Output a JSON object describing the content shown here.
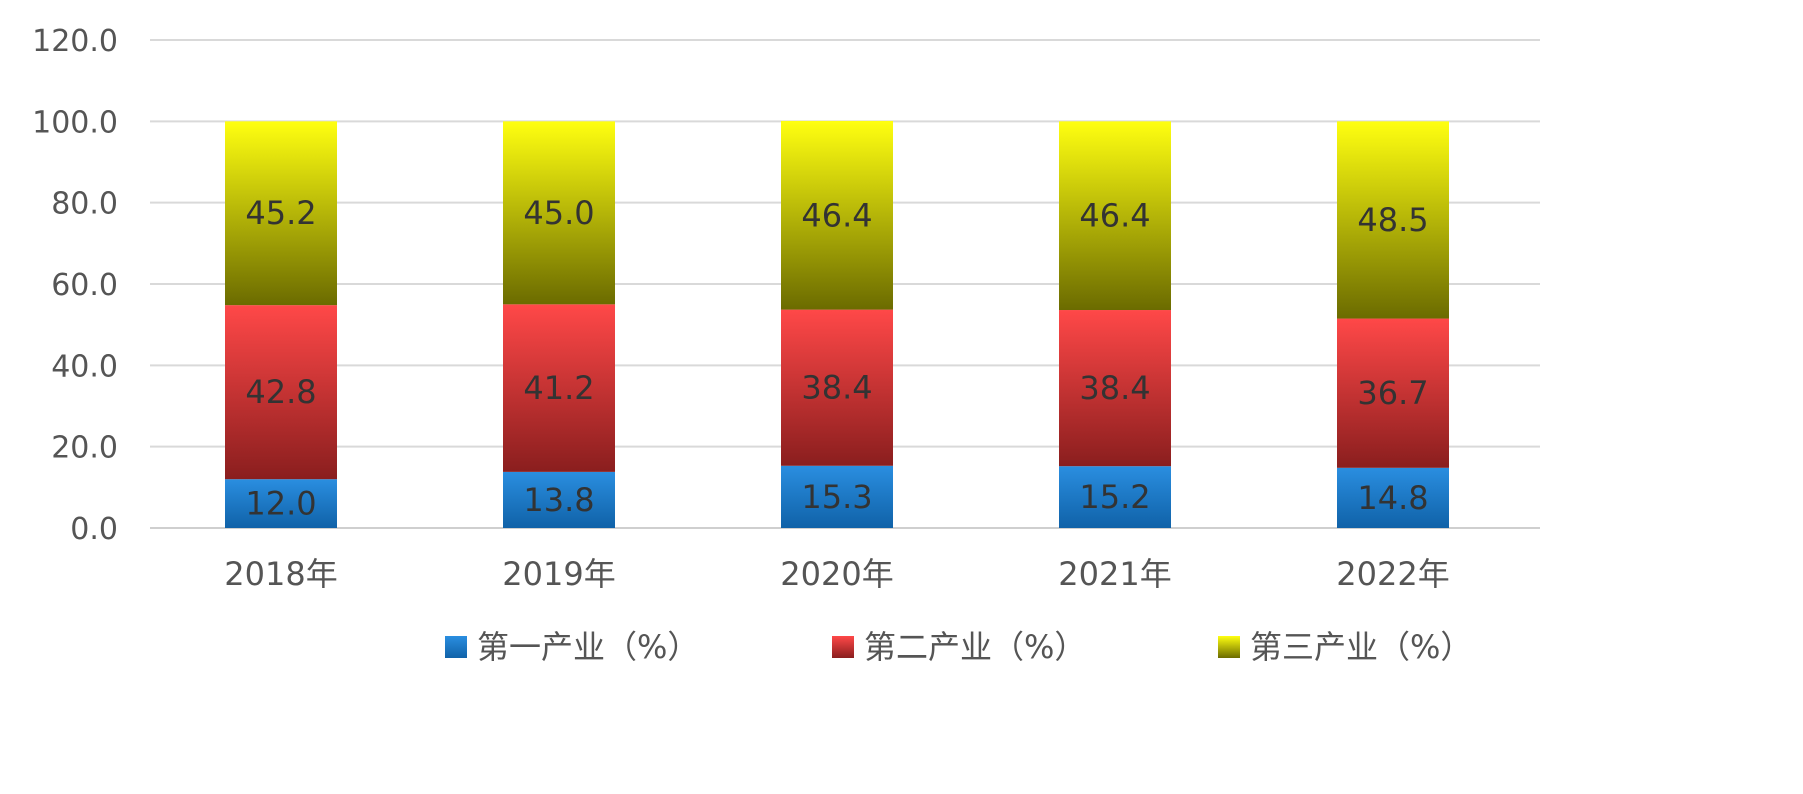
{
  "chart_data": {
    "type": "bar",
    "stacked": true,
    "categories": [
      "2018年",
      "2019年",
      "2020年",
      "2021年",
      "2022年"
    ],
    "series": [
      {
        "name": "第一产业（%）",
        "values": [
          12.0,
          13.8,
          15.3,
          15.2,
          14.8
        ],
        "labels": [
          "12.0",
          "13.8",
          "15.3",
          "15.2",
          "14.8"
        ],
        "color": "#1f7fd0"
      },
      {
        "name": "第二产业（%）",
        "values": [
          42.8,
          41.2,
          38.4,
          38.4,
          36.7
        ],
        "labels": [
          "42.8",
          "41.2",
          "38.4",
          "38.4",
          "36.7"
        ],
        "color": "#e8383d"
      },
      {
        "name": "第三产业（%）",
        "values": [
          45.2,
          45.0,
          46.4,
          46.4,
          48.5
        ],
        "labels": [
          "45.2",
          "45.0",
          "46.4",
          "46.4",
          "48.5"
        ],
        "color": "#f0e600"
      }
    ],
    "ylim": [
      0,
      120
    ],
    "yticks": [
      "0.0",
      "20.0",
      "40.0",
      "60.0",
      "80.0",
      "100.0",
      "120.0"
    ],
    "grid": true,
    "legend_position": "bottom"
  }
}
